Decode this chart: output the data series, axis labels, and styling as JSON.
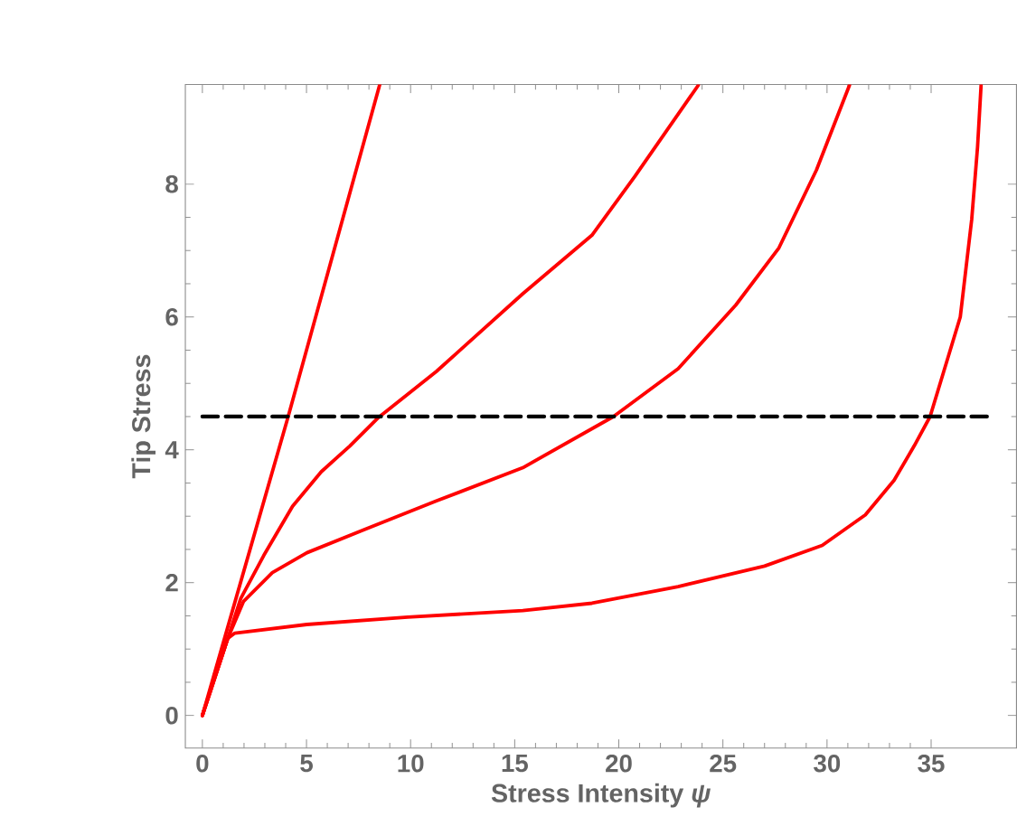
{
  "chart_data": {
    "type": "line",
    "xlabel": "Stress Intensity *ψ*",
    "ylabel": "Tip Stress",
    "xlim": [
      -0.82,
      39.1
    ],
    "ylim": [
      -0.49,
      9.5
    ],
    "xticks": [
      0,
      5,
      10,
      15,
      20,
      25,
      30,
      35
    ],
    "yticks": [
      0,
      2,
      4,
      6,
      8
    ],
    "marker": "none",
    "series": [
      {
        "color": "#ff0000",
        "x": [
          0,
          4.12,
          8.52
        ],
        "values": [
          0,
          4.5,
          9.5
        ]
      },
      {
        "color": "#ff0000",
        "x": [
          0,
          1.22,
          1.84,
          2.95,
          4.33,
          5.71,
          7.09,
          8.47,
          11.24,
          15.39,
          18.71,
          20.78,
          23.82
        ],
        "values": [
          0,
          1.16,
          1.76,
          2.41,
          3.15,
          3.67,
          4.06,
          4.49,
          5.18,
          6.35,
          7.23,
          8.12,
          9.49
        ]
      },
      {
        "color": "#ff0000",
        "x": [
          0,
          1.22,
          1.98,
          3.36,
          5.02,
          7.78,
          11.24,
          15.39,
          19.74,
          22.85,
          25.62,
          27.69,
          29.49,
          31.08
        ],
        "values": [
          0,
          1.16,
          1.72,
          2.15,
          2.45,
          2.8,
          3.23,
          3.73,
          4.5,
          5.22,
          6.18,
          7.04,
          8.21,
          9.49
        ]
      },
      {
        "color": "#ff0000",
        "x": [
          0,
          1.22,
          1.56,
          5.02,
          9.86,
          15.39,
          18.71,
          22.85,
          27.0,
          29.77,
          31.84,
          33.22,
          34.19,
          34.95,
          36.4,
          36.95,
          37.23,
          37.4
        ],
        "values": [
          0,
          1.16,
          1.24,
          1.37,
          1.48,
          1.58,
          1.69,
          1.94,
          2.25,
          2.56,
          3.02,
          3.54,
          4.06,
          4.5,
          6.0,
          7.47,
          8.56,
          9.49
        ]
      },
      {
        "color": "#000000",
        "line_style": "dashed",
        "x": [
          0,
          38
        ],
        "values": [
          4.5,
          4.5
        ]
      }
    ]
  }
}
